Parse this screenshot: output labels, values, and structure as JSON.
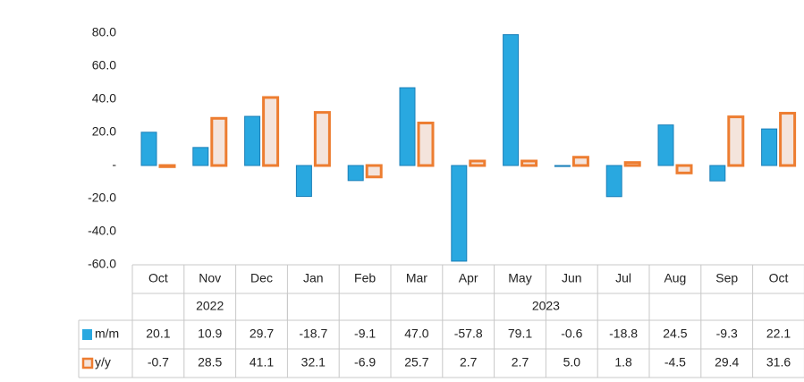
{
  "chart_data": {
    "type": "bar",
    "groups": [
      {
        "label": "2022",
        "categories": [
          "Oct",
          "Nov",
          "Dec"
        ]
      },
      {
        "label": "2023",
        "categories": [
          "Jan",
          "Feb",
          "Mar",
          "Apr",
          "May",
          "Jun",
          "Jul",
          "Aug",
          "Sep",
          "Oct"
        ]
      }
    ],
    "series": [
      {
        "name": "m/m",
        "color": "#29a8e0",
        "values": [
          20.1,
          10.9,
          29.7,
          -18.7,
          -9.1,
          47.0,
          -57.8,
          79.1,
          -0.6,
          -18.8,
          24.5,
          -9.3,
          22.1
        ],
        "value_labels": [
          "20.1",
          "10.9",
          "29.7",
          "-18.7",
          "-9.1",
          "47.0",
          "-57.8",
          "79.1",
          "-0.6",
          "-18.8",
          "24.5",
          "-9.3",
          "22.1"
        ]
      },
      {
        "name": "y/y",
        "color": "#ed7d31",
        "values": [
          -0.7,
          28.5,
          41.1,
          32.1,
          -6.9,
          25.7,
          2.7,
          2.7,
          5.0,
          1.8,
          -4.5,
          29.4,
          31.6
        ],
        "value_labels": [
          "-0.7",
          "28.5",
          "41.1",
          "32.1",
          "-6.9",
          "25.7",
          "2.7",
          "2.7",
          "5.0",
          "1.8",
          "-4.5",
          "29.4",
          "31.6"
        ]
      }
    ],
    "ylim": [
      -60,
      80
    ],
    "yticks": [
      {
        "value": -60,
        "label": "-60.0"
      },
      {
        "value": -40,
        "label": "-40.0"
      },
      {
        "value": -20,
        "label": "-20.0"
      },
      {
        "value": 0,
        "label": "-"
      },
      {
        "value": 20,
        "label": "20.0"
      },
      {
        "value": 40,
        "label": "40.0"
      },
      {
        "value": 60,
        "label": "60.0"
      },
      {
        "value": 80,
        "label": "80.0"
      }
    ]
  }
}
